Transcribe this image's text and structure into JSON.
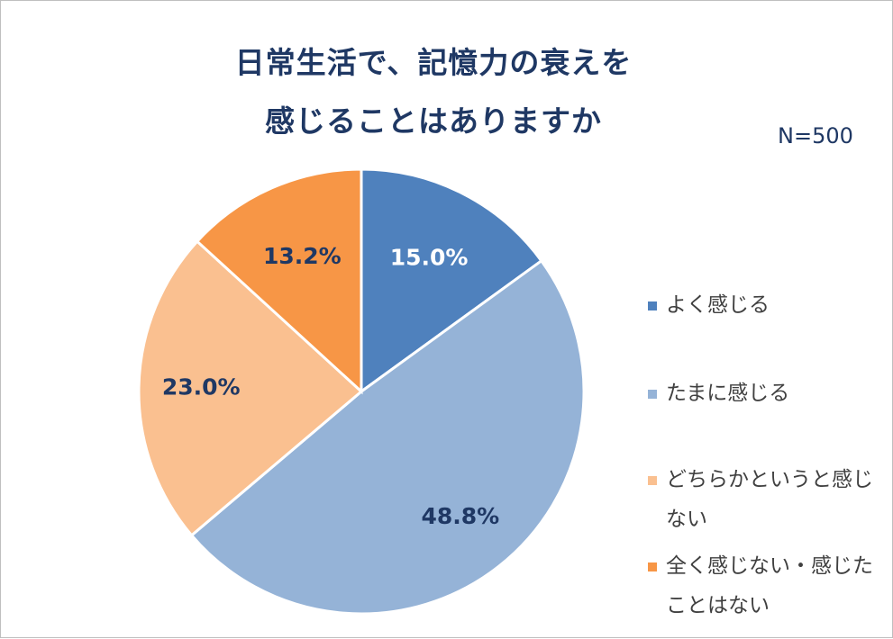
{
  "chart_data": {
    "type": "pie",
    "title_lines": [
      "日常生活で、記憶力の衰えを",
      "感じることはありますか"
    ],
    "note": "N=500",
    "start_angle_deg": 0,
    "direction": "clockwise",
    "slices": [
      {
        "label": "よく感じる",
        "value": 15.0,
        "display": "15.0%",
        "color": "#4f81bd",
        "text_color": "#ffffff"
      },
      {
        "label": "たまに感じる",
        "value": 48.8,
        "display": "48.8%",
        "color": "#95b3d7",
        "text_color": "#1f3864"
      },
      {
        "label": "どちらかというと感じない",
        "value": 23.0,
        "display": "23.0%",
        "color": "#fac090",
        "text_color": "#1f3864"
      },
      {
        "label": "全く感じない・感じたことはない",
        "value": 13.2,
        "display": "13.2%",
        "color": "#f79646",
        "text_color": "#1f3864"
      }
    ],
    "legend_position": "right"
  }
}
